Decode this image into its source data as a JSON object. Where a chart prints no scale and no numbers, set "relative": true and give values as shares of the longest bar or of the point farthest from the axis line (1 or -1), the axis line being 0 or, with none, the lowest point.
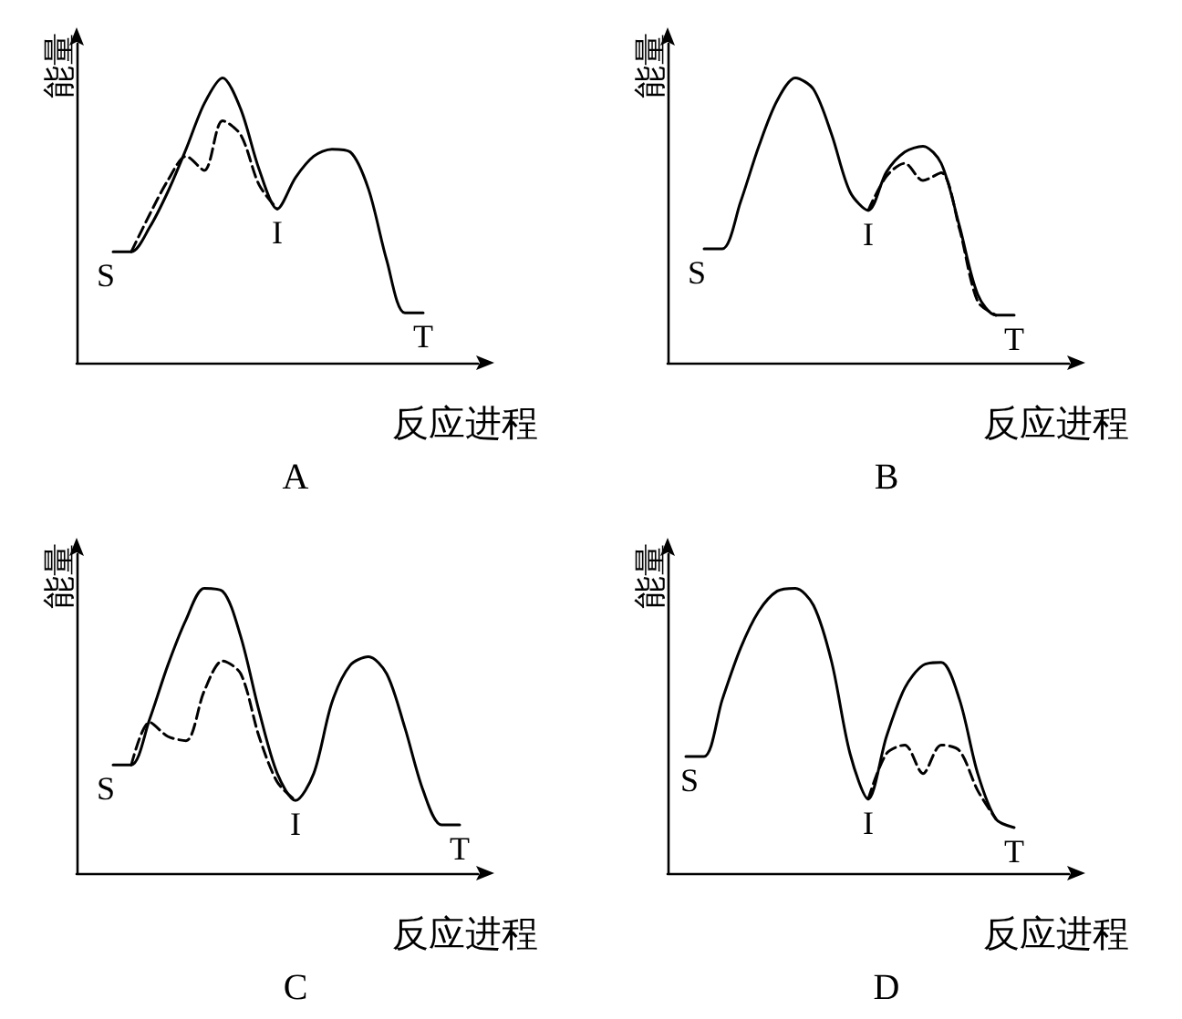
{
  "chart_data": [
    {
      "type": "line",
      "title": "A",
      "xlabel": "反应进程",
      "ylabel": "能量",
      "relative": true,
      "grid": false,
      "marker": "none",
      "annotations": [
        "S",
        "I",
        "T"
      ],
      "categories": [
        null,
        null,
        null,
        null,
        null,
        null,
        null,
        null,
        null,
        null,
        null,
        null,
        null,
        null,
        null,
        null,
        null,
        null,
        null,
        null,
        null,
        null,
        null
      ],
      "series": [
        {
          "color": "#000000",
          "line_style": "solid",
          "values": [
            null,
            null,
            0.39,
            0.39,
            0.475,
            0.6,
            0.75,
            0.91,
            1.0,
            0.89,
            0.68,
            0.54,
            0.65,
            0.725,
            0.75,
            0.74,
            0.61,
            0.36,
            0.175,
            0.175,
            null,
            null,
            null
          ]
        },
        {
          "color": "#000000",
          "line_style": "dashed",
          "values": [
            null,
            null,
            null,
            0.39,
            0.52,
            0.64,
            0.725,
            0.675,
            0.85,
            0.8,
            0.625,
            0.54,
            null,
            null,
            null,
            null,
            null,
            null,
            null,
            null,
            null,
            null,
            null
          ]
        }
      ]
    },
    {
      "type": "line",
      "title": "B",
      "xlabel": "反应进程",
      "ylabel": "能量",
      "relative": true,
      "grid": false,
      "marker": "none",
      "annotations": [
        "S",
        "I",
        "T"
      ],
      "categories": [
        null,
        null,
        null,
        null,
        null,
        null,
        null,
        null,
        null,
        null,
        null,
        null,
        null,
        null,
        null,
        null,
        null,
        null,
        null,
        null,
        null,
        null,
        null
      ],
      "series": [
        {
          "color": "#000000",
          "line_style": "solid",
          "values": [
            null,
            null,
            0.4,
            0.4,
            0.565,
            0.76,
            0.92,
            1.0,
            0.96,
            0.8,
            0.6,
            0.535,
            0.67,
            0.74,
            0.76,
            0.7,
            0.48,
            0.24,
            0.167,
            0.167,
            null,
            null,
            null
          ]
        },
        {
          "color": "#000000",
          "line_style": "dashed",
          "values": [
            null,
            null,
            null,
            null,
            null,
            null,
            null,
            null,
            null,
            null,
            null,
            0.535,
            0.655,
            0.7,
            0.64,
            0.667,
            0.47,
            0.215,
            0.167,
            null,
            null,
            null,
            null
          ]
        }
      ]
    },
    {
      "type": "line",
      "title": "C",
      "xlabel": "反应进程",
      "ylabel": "能量",
      "relative": true,
      "grid": false,
      "marker": "none",
      "annotations": [
        "S",
        "I",
        "T"
      ],
      "categories": [
        null,
        null,
        null,
        null,
        null,
        null,
        null,
        null,
        null,
        null,
        null,
        null,
        null,
        null,
        null,
        null,
        null,
        null,
        null,
        null,
        null,
        null,
        null
      ],
      "series": [
        {
          "color": "#000000",
          "line_style": "solid",
          "values": [
            null,
            null,
            0.38,
            0.38,
            0.54,
            0.73,
            0.89,
            1.0,
            0.99,
            0.83,
            0.57,
            0.35,
            0.255,
            0.35,
            0.6,
            0.73,
            0.76,
            0.7,
            0.51,
            0.29,
            0.17,
            0.17,
            null
          ]
        },
        {
          "color": "#000000",
          "line_style": "dashed",
          "values": [
            null,
            null,
            null,
            0.38,
            0.53,
            0.48,
            0.465,
            0.64,
            0.745,
            0.7,
            0.48,
            0.32,
            0.255,
            null,
            null,
            null,
            null,
            null,
            null,
            null,
            null,
            null,
            null
          ]
        }
      ]
    },
    {
      "type": "line",
      "title": "D",
      "xlabel": "反应进程",
      "ylabel": "能量",
      "relative": true,
      "grid": false,
      "marker": "none",
      "annotations": [
        "S",
        "I",
        "T"
      ],
      "categories": [
        null,
        null,
        null,
        null,
        null,
        null,
        null,
        null,
        null,
        null,
        null,
        null,
        null,
        null,
        null,
        null,
        null,
        null,
        null,
        null,
        null,
        null,
        null
      ],
      "series": [
        {
          "color": "#000000",
          "line_style": "solid",
          "values": [
            null,
            0.41,
            0.41,
            0.61,
            0.79,
            0.92,
            0.99,
            1.0,
            0.94,
            0.74,
            0.42,
            0.26,
            0.48,
            0.65,
            0.73,
            0.74,
            0.61,
            0.35,
            0.19,
            0.16,
            null,
            null,
            null
          ]
        },
        {
          "color": "#000000",
          "line_style": "dashed",
          "values": [
            null,
            null,
            null,
            null,
            null,
            null,
            null,
            null,
            null,
            null,
            null,
            0.26,
            0.42,
            0.45,
            0.35,
            0.45,
            0.43,
            0.29,
            0.19,
            null,
            null,
            null,
            null
          ]
        }
      ]
    }
  ]
}
